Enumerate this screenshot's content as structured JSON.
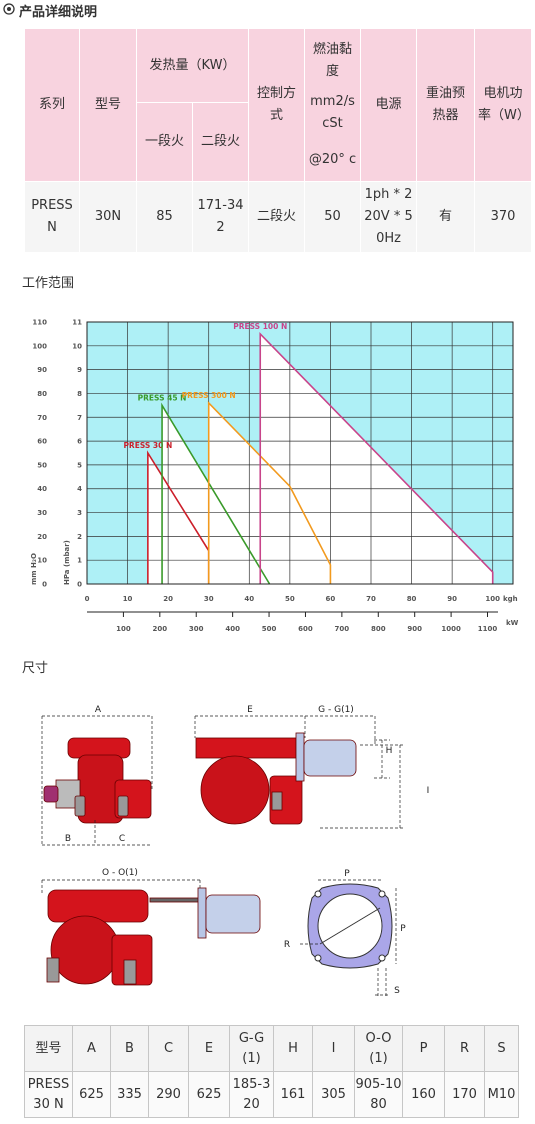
{
  "header": {
    "title": "产品详细说明"
  },
  "spec_table": {
    "headers": [
      "系列",
      "型号",
      "发热量（KW）",
      "一段火",
      "二段火",
      "控制方式",
      [
        "燃油黏度",
        "mm2/s cSt",
        "@20° c"
      ],
      "电源",
      "重油预热器",
      "电机功率（W）"
    ],
    "rows": [
      [
        "PRESS N",
        "30N",
        85,
        "171-342",
        "二段火",
        50,
        "1ph * 220V * 50Hz",
        "有",
        370
      ]
    ]
  },
  "range_title": "工作范围",
  "chart_data": {
    "type": "line",
    "x_label": "kgh",
    "x2_label": "kW",
    "y_label": "HPa (mbar)",
    "y2_label": "mm H₂O",
    "xlim": [
      0,
      105
    ],
    "xticks": [
      0,
      10,
      20,
      30,
      40,
      50,
      60,
      70,
      80,
      90,
      100
    ],
    "x2lim": [
      0,
      1170
    ],
    "x2ticks": [
      100,
      200,
      300,
      400,
      500,
      600,
      700,
      800,
      900,
      1000,
      1100
    ],
    "ylim": [
      0,
      11
    ],
    "yticks": [
      0,
      1,
      2,
      3,
      4,
      5,
      6,
      7,
      8,
      9,
      10,
      11
    ],
    "y2lim": [
      0,
      110
    ],
    "y2ticks": [
      0,
      10,
      20,
      30,
      40,
      50,
      60,
      70,
      80,
      90,
      100,
      110
    ],
    "grid": true,
    "plot_background": "#aef0f6",
    "series": [
      {
        "name": "PRESS 30 N",
        "color": "#cc1f2a",
        "x": [
          15,
          15,
          30,
          30
        ],
        "values": [
          0,
          5.5,
          1.4,
          0
        ]
      },
      {
        "name": "PRESS 45 N",
        "color": "#3a9a2a",
        "x": [
          18.5,
          18.5,
          45
        ],
        "values": [
          0,
          7.5,
          0
        ]
      },
      {
        "name": "PRESS 300 N",
        "color": "#f29a1e",
        "x": [
          30,
          30,
          50,
          60,
          60
        ],
        "values": [
          0,
          7.6,
          4.1,
          0.8,
          0
        ]
      },
      {
        "name": "PRESS 100 N",
        "color": "#c8448a",
        "x": [
          42.7,
          42.7,
          100,
          100
        ],
        "values": [
          0,
          10.5,
          0.5,
          0
        ]
      }
    ]
  },
  "dim_title": "尺寸",
  "drawing_labels": {
    "a": "A",
    "b": "B",
    "c": "C",
    "e": "E",
    "gg": "G - G(1)",
    "h": "H",
    "i": "I",
    "oo": "O - O(1)",
    "p1": "P",
    "p2": "P",
    "r": "R",
    "s": "S"
  },
  "dim_table": {
    "headers": [
      "型号",
      "A",
      "B",
      "C",
      "E",
      "G-G (1)",
      "H",
      "I",
      "O-O (1)",
      "P",
      "R",
      "S"
    ],
    "rows": [
      [
        "PRESS 30 N",
        625,
        335,
        290,
        625,
        "185-320",
        161,
        305,
        "905-1080",
        160,
        170,
        "M10"
      ]
    ]
  }
}
